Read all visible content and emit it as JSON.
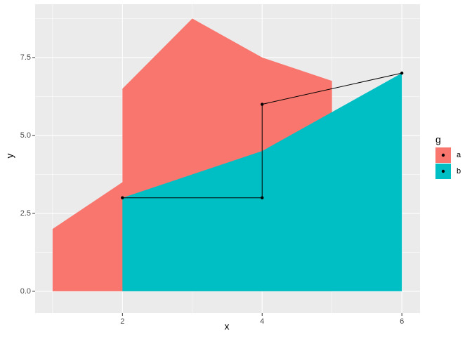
{
  "chart_data": {
    "type": "area",
    "x_label": "x",
    "y_label": "y",
    "legend_title": "g",
    "series": [
      {
        "name": "a",
        "color": "#F8766D",
        "x": [
          1,
          2,
          2,
          3,
          4,
          5
        ],
        "values": [
          2,
          3.5,
          6.5,
          8.75,
          7.5,
          6.75
        ]
      },
      {
        "name": "b",
        "color": "#00BFC4",
        "x": [
          2,
          4,
          6
        ],
        "values": [
          3,
          4.5,
          7
        ]
      }
    ],
    "path": {
      "color": "#000000",
      "x": [
        2,
        4,
        4,
        6
      ],
      "values": [
        3,
        3,
        6,
        7
      ]
    },
    "xlim": [
      0.75,
      6.26
    ],
    "ylim": [
      -0.7,
      9.21
    ],
    "xticks": [
      2,
      4,
      6
    ],
    "yticks": [
      {
        "value": 0,
        "label": "0.0"
      },
      {
        "value": 2.5,
        "label": "2.5"
      },
      {
        "value": 5,
        "label": "5.0"
      },
      {
        "value": 7.5,
        "label": "7.5"
      }
    ],
    "x_minor_grid": [
      1,
      3,
      5
    ],
    "y_minor_grid": [
      1.25,
      3.75,
      6.25,
      8.75
    ],
    "grid": true,
    "legend": "right"
  }
}
